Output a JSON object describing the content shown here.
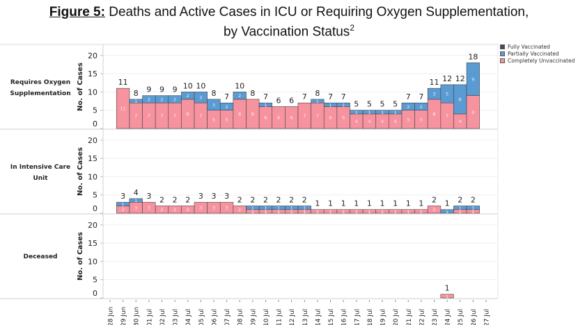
{
  "title": {
    "prefix": "Figure 5:",
    "line1": " Deaths and Active Cases in ICU or Requiring Oxygen Supplementation,",
    "line2": "by Vaccination Status",
    "superscript": "2"
  },
  "legend": [
    {
      "name": "Fully Vaccinated",
      "color": "#3d4d5f"
    },
    {
      "name": "Partially Vaccinated",
      "color": "#5a9bd4"
    },
    {
      "name": "Completely Unvaccinated",
      "color": "#f7939f"
    }
  ],
  "chart_data": {
    "type": "bar",
    "stacked": true,
    "title": "Figure 5: Deaths and Active Cases in ICU or Requiring Oxygen Supplementation, by Vaccination Status",
    "ylabel": "No. of Cases",
    "ylim": [
      0,
      21
    ],
    "yticks": [
      0,
      5,
      10,
      15,
      20
    ],
    "grid": true,
    "legend_position": "top-right",
    "x_ticks": [
      "28 Jun",
      "29 Jun",
      "30 Jun",
      "01 Jul",
      "02 Jul",
      "03 Jul",
      "04 Jul",
      "05 Jul",
      "06 Jul",
      "07 Jul",
      "08 Jul",
      "09 Jul",
      "10 Jul",
      "11 Jul",
      "12 Jul",
      "13 Jul",
      "14 Jul",
      "15 Jul",
      "16 Jul",
      "17 Jul",
      "18 Jul",
      "19 Jul",
      "20 Jul",
      "21 Jul",
      "22 Jul",
      "23 Jul",
      "24 Jul",
      "25 Jul",
      "26 Jul",
      "27 Jul"
    ],
    "categories": [
      "29 Jun",
      "30 Jun",
      "01 Jul",
      "02 Jul",
      "03 Jul",
      "04 Jul",
      "05 Jul",
      "06 Jul",
      "07 Jul",
      "08 Jul",
      "09 Jul",
      "10 Jul",
      "11 Jul",
      "12 Jul",
      "13 Jul",
      "14 Jul",
      "15 Jul",
      "16 Jul",
      "17 Jul",
      "18 Jul",
      "19 Jul",
      "20 Jul",
      "21 Jul",
      "22 Jul",
      "23 Jul",
      "24 Jul",
      "25 Jul",
      "26 Jul"
    ],
    "panels": [
      {
        "name": "Requires Oxygen Supplementation",
        "label_lines": [
          "Requires Oxygen",
          "Supplementation"
        ],
        "series": [
          {
            "name": "Completely Unvaccinated",
            "values": [
              11,
              7,
              7,
              7,
              7,
              8,
              7,
              5,
              5,
              8,
              8,
              6,
              6,
              6,
              7,
              7,
              6,
              6,
              4,
              4,
              4,
              4,
              5,
              5,
              8,
              7,
              4,
              9
            ]
          },
          {
            "name": "Partially Vaccinated",
            "values": [
              0,
              1,
              2,
              2,
              2,
              2,
              3,
              3,
              2,
              2,
              0,
              1,
              0,
              0,
              0,
              1,
              1,
              1,
              1,
              1,
              1,
              1,
              2,
              2,
              3,
              5,
              8,
              9
            ]
          },
          {
            "name": "Fully Vaccinated",
            "values": [
              0,
              0,
              0,
              0,
              0,
              0,
              0,
              0,
              0,
              0,
              0,
              0,
              0,
              0,
              0,
              0,
              0,
              0,
              0,
              0,
              0,
              0,
              0,
              0,
              0,
              0,
              0,
              0
            ]
          }
        ],
        "totals": [
          11,
          8,
          9,
          9,
          9,
          10,
          10,
          8,
          7,
          10,
          8,
          7,
          6,
          6,
          7,
          8,
          7,
          7,
          5,
          5,
          5,
          5,
          7,
          7,
          11,
          12,
          12,
          18
        ]
      },
      {
        "name": "In Intensive Care Unit",
        "label_lines": [
          "In Intensive Care",
          "Unit"
        ],
        "series": [
          {
            "name": "Completely Unvaccinated",
            "values": [
              2,
              3,
              3,
              2,
              2,
              2,
              3,
              3,
              3,
              2,
              1,
              1,
              1,
              1,
              1,
              1,
              1,
              1,
              1,
              1,
              1,
              1,
              1,
              1,
              2,
              0,
              1,
              1
            ]
          },
          {
            "name": "Partially Vaccinated",
            "values": [
              1,
              1,
              0,
              0,
              0,
              0,
              0,
              0,
              0,
              0,
              1,
              1,
              1,
              1,
              1,
              0,
              0,
              0,
              0,
              0,
              0,
              0,
              0,
              0,
              0,
              1,
              1,
              1
            ]
          },
          {
            "name": "Fully Vaccinated",
            "values": [
              0,
              0,
              0,
              0,
              0,
              0,
              0,
              0,
              0,
              0,
              0,
              0,
              0,
              0,
              0,
              0,
              0,
              0,
              0,
              0,
              0,
              0,
              0,
              0,
              0,
              0,
              0,
              0
            ]
          }
        ],
        "totals": [
          3,
          4,
          3,
          2,
          2,
          2,
          3,
          3,
          3,
          2,
          2,
          2,
          2,
          2,
          2,
          1,
          1,
          1,
          1,
          1,
          1,
          1,
          1,
          1,
          2,
          1,
          2,
          2
        ]
      },
      {
        "name": "Deceased",
        "label_lines": [
          "Deceased"
        ],
        "series": [
          {
            "name": "Completely Unvaccinated",
            "values": [
              0,
              0,
              0,
              0,
              0,
              0,
              0,
              0,
              0,
              0,
              0,
              0,
              0,
              0,
              0,
              0,
              0,
              0,
              0,
              0,
              0,
              0,
              0,
              0,
              0,
              1,
              0,
              0
            ]
          },
          {
            "name": "Partially Vaccinated",
            "values": [
              0,
              0,
              0,
              0,
              0,
              0,
              0,
              0,
              0,
              0,
              0,
              0,
              0,
              0,
              0,
              0,
              0,
              0,
              0,
              0,
              0,
              0,
              0,
              0,
              0,
              0,
              0,
              0
            ]
          },
          {
            "name": "Fully Vaccinated",
            "values": [
              0,
              0,
              0,
              0,
              0,
              0,
              0,
              0,
              0,
              0,
              0,
              0,
              0,
              0,
              0,
              0,
              0,
              0,
              0,
              0,
              0,
              0,
              0,
              0,
              0,
              0,
              0,
              0
            ]
          }
        ],
        "totals": [
          0,
          0,
          0,
          0,
          0,
          0,
          0,
          0,
          0,
          0,
          0,
          0,
          0,
          0,
          0,
          0,
          0,
          0,
          0,
          0,
          0,
          0,
          0,
          0,
          0,
          1,
          0,
          0
        ]
      }
    ]
  }
}
